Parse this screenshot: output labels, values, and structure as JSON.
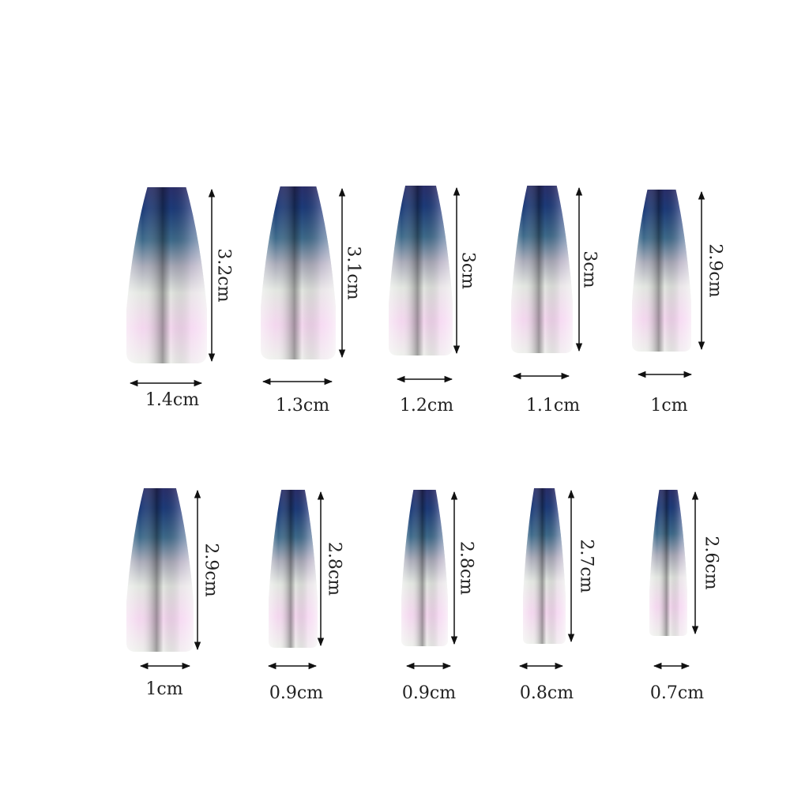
{
  "nails": [
    {
      "length": "3.2cm",
      "width": "1.4cm"
    },
    {
      "length": "3.1cm",
      "width": "1.3cm"
    },
    {
      "length": "3cm",
      "width": "1.2cm"
    },
    {
      "length": "3cm",
      "width": "1.1cm"
    },
    {
      "length": "2.9cm",
      "width": "1cm"
    },
    {
      "length": "2.9cm",
      "width": "1cm"
    },
    {
      "length": "2.8cm",
      "width": "0.9cm"
    },
    {
      "length": "2.8cm",
      "width": "0.9cm"
    },
    {
      "length": "2.7cm",
      "width": "0.8cm"
    },
    {
      "length": "2.6cm",
      "width": "0.7cm"
    }
  ],
  "colors": {
    "nail_top": "#1c3a78",
    "nail_mid": "#3d6a8a",
    "nail_bottom": "#eef0ec",
    "iridescent": "#f3d6ee",
    "text": "#222222"
  }
}
